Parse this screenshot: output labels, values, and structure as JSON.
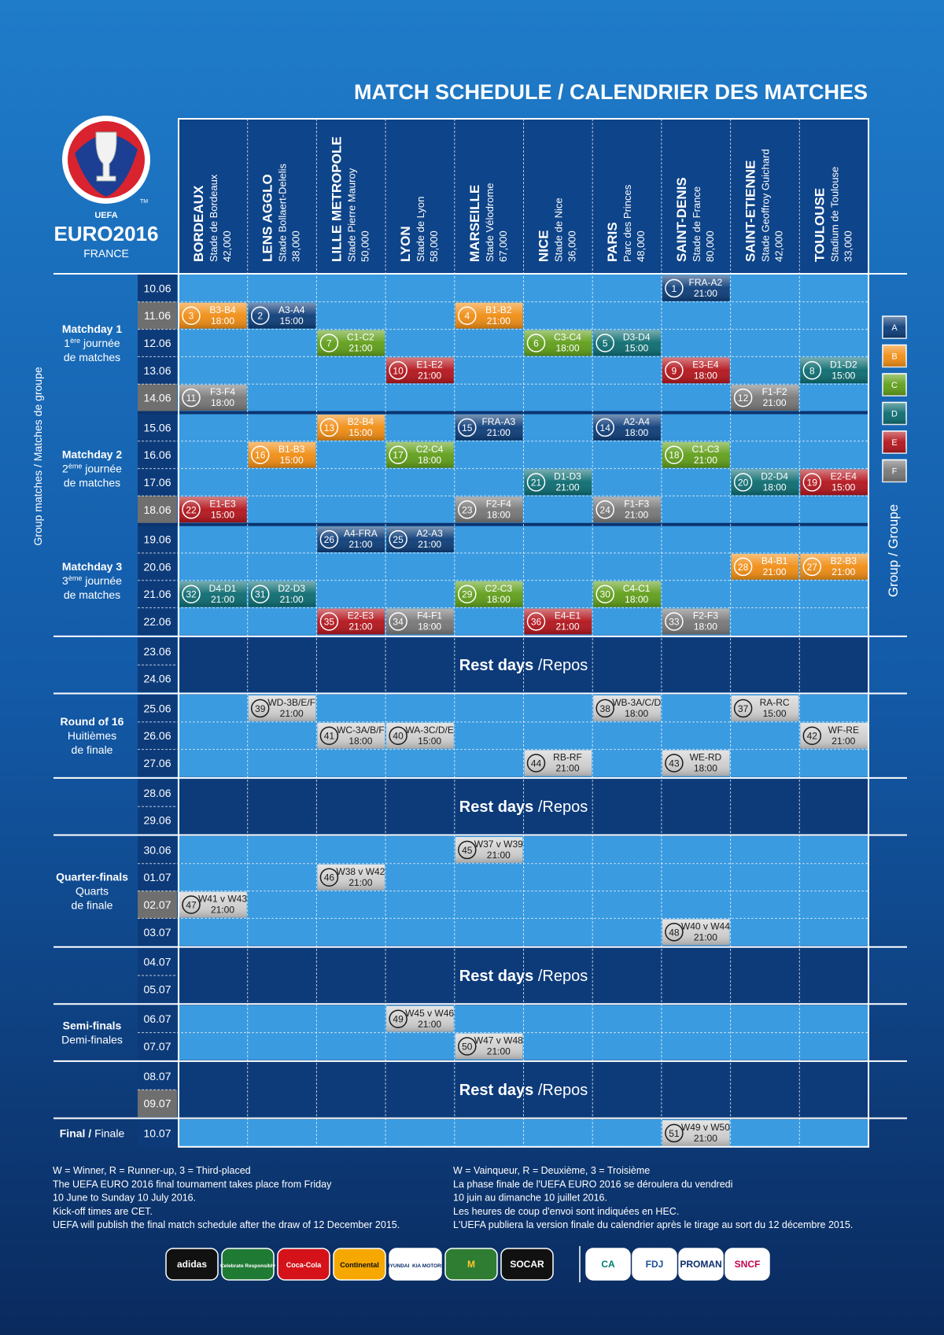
{
  "header": {
    "title": "MATCH SCHEDULE / CALENDRIER DES MATCHES"
  },
  "logo": {
    "org": "UEFA",
    "name": "EURO2016",
    "country": "FRANCE",
    "mark": "TM"
  },
  "venues": [
    {
      "city": "BORDEAUX",
      "stadium": "Stade de Bordeaux",
      "capacity": "42,000"
    },
    {
      "city": "LENS AGGLO",
      "stadium": "Stade Bollaert-Delelis",
      "capacity": "38,000"
    },
    {
      "city": "LILLE METROPOLE",
      "stadium": "Stade Pierre Mauroy",
      "capacity": "50,000"
    },
    {
      "city": "LYON",
      "stadium": "Stade de Lyon",
      "capacity": "58,000"
    },
    {
      "city": "MARSEILLE",
      "stadium": "Stade Vélodrome",
      "capacity": "67,000"
    },
    {
      "city": "NICE",
      "stadium": "Stade de Nice",
      "capacity": "36,000"
    },
    {
      "city": "PARIS",
      "stadium": "Parc des Princes",
      "capacity": "48,000"
    },
    {
      "city": "SAINT-DENIS",
      "stadium": "Stade de France",
      "capacity": "80,000"
    },
    {
      "city": "SAINT-ETIENNE",
      "stadium": "Stade Geoffroy Guichard",
      "capacity": "42,000"
    },
    {
      "city": "TOULOUSE",
      "stadium": "Stadium de Toulouse",
      "capacity": "33,000"
    }
  ],
  "side_labels": {
    "left": "Group matches / Matches de groupe",
    "right": "Group / Groupe"
  },
  "groups": [
    {
      "name": "A",
      "color": "#0c3c78"
    },
    {
      "name": "B",
      "color": "#f08c12"
    },
    {
      "name": "C",
      "color": "#5f9e18"
    },
    {
      "name": "D",
      "color": "#0b6b70"
    },
    {
      "name": "E",
      "color": "#b3141b"
    },
    {
      "name": "F",
      "color": "#777777"
    }
  ],
  "knockout_color": "#cfcfcf",
  "dates": [
    "10.06",
    "11.06",
    "12.06",
    "13.06",
    "14.06",
    "15.06",
    "16.06",
    "17.06",
    "18.06",
    "19.06",
    "20.06",
    "21.06",
    "22.06",
    "23.06",
    "24.06",
    "25.06",
    "26.06",
    "27.06",
    "28.06",
    "29.06",
    "30.06",
    "01.07",
    "02.07",
    "03.07",
    "04.07",
    "05.07",
    "06.07",
    "07.07",
    "08.07",
    "09.07",
    "10.07"
  ],
  "highlighted_dates": [
    1,
    4,
    8,
    22,
    29
  ],
  "rest_label": [
    {
      "text": "Rest days",
      "bold": true
    },
    {
      "text": " /Repos"
    }
  ],
  "stages": [
    {
      "type": "group",
      "dates": [
        0,
        4
      ],
      "lines": [
        [
          {
            "text": "Matchday 1",
            "bold": true
          }
        ],
        [
          {
            "text": "1"
          },
          {
            "text": "ère",
            "sup": true
          },
          {
            "text": " journée"
          }
        ],
        [
          {
            "text": "de matches"
          }
        ]
      ]
    },
    {
      "type": "group",
      "dates": [
        5,
        8
      ],
      "lines": [
        [
          {
            "text": "Matchday 2",
            "bold": true
          }
        ],
        [
          {
            "text": "2"
          },
          {
            "text": "ème",
            "sup": true
          },
          {
            "text": " journée"
          }
        ],
        [
          {
            "text": "de matches"
          }
        ]
      ]
    },
    {
      "type": "group",
      "dates": [
        9,
        12
      ],
      "lines": [
        [
          {
            "text": "Matchday 3",
            "bold": true
          }
        ],
        [
          {
            "text": "3"
          },
          {
            "text": "ème",
            "sup": true
          },
          {
            "text": " journée"
          }
        ],
        [
          {
            "text": "de matches"
          }
        ]
      ]
    },
    {
      "type": "rest",
      "dates": [
        13,
        14
      ],
      "lines": []
    },
    {
      "type": "knockout",
      "dates": [
        15,
        17
      ],
      "lines": [
        [
          {
            "text": "Round of 16",
            "bold": true
          }
        ],
        [
          {
            "text": "Huitièmes"
          }
        ],
        [
          {
            "text": "de finale"
          }
        ]
      ]
    },
    {
      "type": "rest",
      "dates": [
        18,
        19
      ],
      "lines": []
    },
    {
      "type": "knockout",
      "dates": [
        20,
        23
      ],
      "lines": [
        [
          {
            "text": "Quarter-finals",
            "bold": true
          }
        ],
        [
          {
            "text": "Quarts"
          }
        ],
        [
          {
            "text": "de finale"
          }
        ]
      ]
    },
    {
      "type": "rest",
      "dates": [
        24,
        25
      ],
      "lines": []
    },
    {
      "type": "knockout",
      "dates": [
        26,
        27
      ],
      "lines": [
        [
          {
            "text": "Semi-finals",
            "bold": true
          }
        ],
        [
          {
            "text": "Demi-finales"
          }
        ]
      ]
    },
    {
      "type": "rest",
      "dates": [
        28,
        29
      ],
      "lines": []
    },
    {
      "type": "knockout",
      "dates": [
        30,
        30
      ],
      "lines": [
        [
          {
            "text": "Final /",
            "bold": true
          },
          {
            "text": " Finale"
          }
        ]
      ]
    }
  ],
  "matches": [
    {
      "no": "1",
      "teams": "FRA-A2",
      "time": "21:00",
      "date": 0,
      "venue": 7,
      "group": 0
    },
    {
      "no": "3",
      "teams": "B3-B4",
      "time": "18:00",
      "date": 1,
      "venue": 0,
      "group": 1
    },
    {
      "no": "2",
      "teams": "A3-A4",
      "time": "15:00",
      "date": 1,
      "venue": 1,
      "group": 0
    },
    {
      "no": "4",
      "teams": "B1-B2",
      "time": "21:00",
      "date": 1,
      "venue": 4,
      "group": 1
    },
    {
      "no": "7",
      "teams": "C1-C2",
      "time": "21:00",
      "date": 2,
      "venue": 2,
      "group": 2
    },
    {
      "no": "6",
      "teams": "C3-C4",
      "time": "18:00",
      "date": 2,
      "venue": 5,
      "group": 2
    },
    {
      "no": "5",
      "teams": "D3-D4",
      "time": "15:00",
      "date": 2,
      "venue": 6,
      "group": 3
    },
    {
      "no": "10",
      "teams": "E1-E2",
      "time": "21:00",
      "date": 3,
      "venue": 3,
      "group": 4
    },
    {
      "no": "9",
      "teams": "E3-E4",
      "time": "18:00",
      "date": 3,
      "venue": 7,
      "group": 4
    },
    {
      "no": "8",
      "teams": "D1-D2",
      "time": "15:00",
      "date": 3,
      "venue": 9,
      "group": 3
    },
    {
      "no": "11",
      "teams": "F3-F4",
      "time": "18:00",
      "date": 4,
      "venue": 0,
      "group": 5
    },
    {
      "no": "12",
      "teams": "F1-F2",
      "time": "21:00",
      "date": 4,
      "venue": 8,
      "group": 5
    },
    {
      "no": "13",
      "teams": "B2-B4",
      "time": "15:00",
      "date": 5,
      "venue": 2,
      "group": 1
    },
    {
      "no": "15",
      "teams": "FRA-A3",
      "time": "21:00",
      "date": 5,
      "venue": 4,
      "group": 0
    },
    {
      "no": "14",
      "teams": "A2-A4",
      "time": "18:00",
      "date": 5,
      "venue": 6,
      "group": 0
    },
    {
      "no": "16",
      "teams": "B1-B3",
      "time": "15:00",
      "date": 6,
      "venue": 1,
      "group": 1
    },
    {
      "no": "17",
      "teams": "C2-C4",
      "time": "18:00",
      "date": 6,
      "venue": 3,
      "group": 2
    },
    {
      "no": "18",
      "teams": "C1-C3",
      "time": "21:00",
      "date": 6,
      "venue": 7,
      "group": 2
    },
    {
      "no": "21",
      "teams": "D1-D3",
      "time": "21:00",
      "date": 7,
      "venue": 5,
      "group": 3
    },
    {
      "no": "20",
      "teams": "D2-D4",
      "time": "18:00",
      "date": 7,
      "venue": 8,
      "group": 3
    },
    {
      "no": "19",
      "teams": "E2-E4",
      "time": "15:00",
      "date": 7,
      "venue": 9,
      "group": 4
    },
    {
      "no": "22",
      "teams": "E1-E3",
      "time": "15:00",
      "date": 8,
      "venue": 0,
      "group": 4
    },
    {
      "no": "23",
      "teams": "F2-F4",
      "time": "18:00",
      "date": 8,
      "venue": 4,
      "group": 5
    },
    {
      "no": "24",
      "teams": "F1-F3",
      "time": "21:00",
      "date": 8,
      "venue": 6,
      "group": 5
    },
    {
      "no": "26",
      "teams": "A4-FRA",
      "time": "21:00",
      "date": 9,
      "venue": 2,
      "group": 0
    },
    {
      "no": "25",
      "teams": "A2-A3",
      "time": "21:00",
      "date": 9,
      "venue": 3,
      "group": 0
    },
    {
      "no": "28",
      "teams": "B4-B1",
      "time": "21:00",
      "date": 10,
      "venue": 8,
      "group": 1
    },
    {
      "no": "27",
      "teams": "B2-B3",
      "time": "21:00",
      "date": 10,
      "venue": 9,
      "group": 1
    },
    {
      "no": "32",
      "teams": "D4-D1",
      "time": "21:00",
      "date": 11,
      "venue": 0,
      "group": 3
    },
    {
      "no": "31",
      "teams": "D2-D3",
      "time": "21:00",
      "date": 11,
      "venue": 1,
      "group": 3
    },
    {
      "no": "29",
      "teams": "C2-C3",
      "time": "18:00",
      "date": 11,
      "venue": 4,
      "group": 2
    },
    {
      "no": "30",
      "teams": "C4-C1",
      "time": "18:00",
      "date": 11,
      "venue": 6,
      "group": 2
    },
    {
      "no": "35",
      "teams": "E2-E3",
      "time": "21:00",
      "date": 12,
      "venue": 2,
      "group": 4
    },
    {
      "no": "34",
      "teams": "F4-F1",
      "time": "18:00",
      "date": 12,
      "venue": 3,
      "group": 5
    },
    {
      "no": "36",
      "teams": "E4-E1",
      "time": "21:00",
      "date": 12,
      "venue": 5,
      "group": 4
    },
    {
      "no": "33",
      "teams": "F2-F3",
      "time": "18:00",
      "date": 12,
      "venue": 7,
      "group": 5
    },
    {
      "no": "39",
      "teams": "WD-3B/E/F",
      "time": "21:00",
      "date": 15,
      "venue": 1,
      "group": null
    },
    {
      "no": "38",
      "teams": "WB-3A/C/D",
      "time": "18:00",
      "date": 15,
      "venue": 6,
      "group": null
    },
    {
      "no": "37",
      "teams": "RA-RC",
      "time": "15:00",
      "date": 15,
      "venue": 8,
      "group": null
    },
    {
      "no": "41",
      "teams": "WC-3A/B/F",
      "time": "18:00",
      "date": 16,
      "venue": 2,
      "group": null
    },
    {
      "no": "40",
      "teams": "WA-3C/D/E",
      "time": "15:00",
      "date": 16,
      "venue": 3,
      "group": null
    },
    {
      "no": "42",
      "teams": "WF-RE",
      "time": "21:00",
      "date": 16,
      "venue": 9,
      "group": null
    },
    {
      "no": "44",
      "teams": "RB-RF",
      "time": "21:00",
      "date": 17,
      "venue": 5,
      "group": null
    },
    {
      "no": "43",
      "teams": "WE-RD",
      "time": "18:00",
      "date": 17,
      "venue": 7,
      "group": null
    },
    {
      "no": "45",
      "teams": "W37 v W39",
      "time": "21:00",
      "date": 20,
      "venue": 4,
      "group": null
    },
    {
      "no": "46",
      "teams": "W38 v W42",
      "time": "21:00",
      "date": 21,
      "venue": 2,
      "group": null
    },
    {
      "no": "47",
      "teams": "W41 v W43",
      "time": "21:00",
      "date": 22,
      "venue": 0,
      "group": null
    },
    {
      "no": "48",
      "teams": "W40 v W44",
      "time": "21:00",
      "date": 23,
      "venue": 7,
      "group": null
    },
    {
      "no": "49",
      "teams": "W45 v W46",
      "time": "21:00",
      "date": 26,
      "venue": 3,
      "group": null
    },
    {
      "no": "50",
      "teams": "W47 v W48",
      "time": "21:00",
      "date": 27,
      "venue": 4,
      "group": null
    },
    {
      "no": "51",
      "teams": "W49 v W50",
      "time": "21:00",
      "date": 30,
      "venue": 7,
      "group": null
    }
  ],
  "notes": {
    "left": [
      "W = Winner, R = Runner-up, 3 = Third-placed",
      "The UEFA EURO 2016 final tournament takes place from Friday",
      "10 June to Sunday 10 July 2016.",
      "Kick-off times are CET.",
      "UEFA will publish the final match schedule after the draw of 12 December 2015."
    ],
    "right": [
      "W = Vainqueur, R = Deuxième, 3 = Troisième",
      "La phase finale de l'UEFA EURO 2016 se déroulera du vendredi",
      "10 juin au dimanche 10 juillet 2016.",
      "Les heures de coup d'envoi sont indiquées en HEC.",
      "L'UEFA publiera la version finale du calendrier après le tirage au sort du 12 décembre 2015."
    ]
  },
  "sponsors": [
    {
      "name": "adidas",
      "bg": "#111111",
      "fg": "#ffffff"
    },
    {
      "name": "Celebrate Responsibly",
      "bg": "#1f7a34",
      "fg": "#ffffff"
    },
    {
      "name": "Coca-Cola",
      "bg": "#d5121a",
      "fg": "#ffffff"
    },
    {
      "name": "Continental",
      "bg": "#f6a800",
      "fg": "#111111"
    },
    {
      "name": "HYUNDAI  KIA MOTORS",
      "bg": "#ffffff",
      "fg": "#0b2d6b"
    },
    {
      "name": "M",
      "bg": "#2e7d32",
      "fg": "#ffc72c"
    },
    {
      "name": "SOCAR",
      "bg": "#111111",
      "fg": "#ffffff"
    },
    {
      "name": "CA",
      "bg": "#ffffff",
      "fg": "#00806b"
    },
    {
      "name": "FDJ",
      "bg": "#ffffff",
      "fg": "#1a4f9c"
    },
    {
      "name": "PROMAN",
      "bg": "#ffffff",
      "fg": "#0b2d6b"
    },
    {
      "name": "SNCF",
      "bg": "#ffffff",
      "fg": "#c4004e"
    }
  ]
}
